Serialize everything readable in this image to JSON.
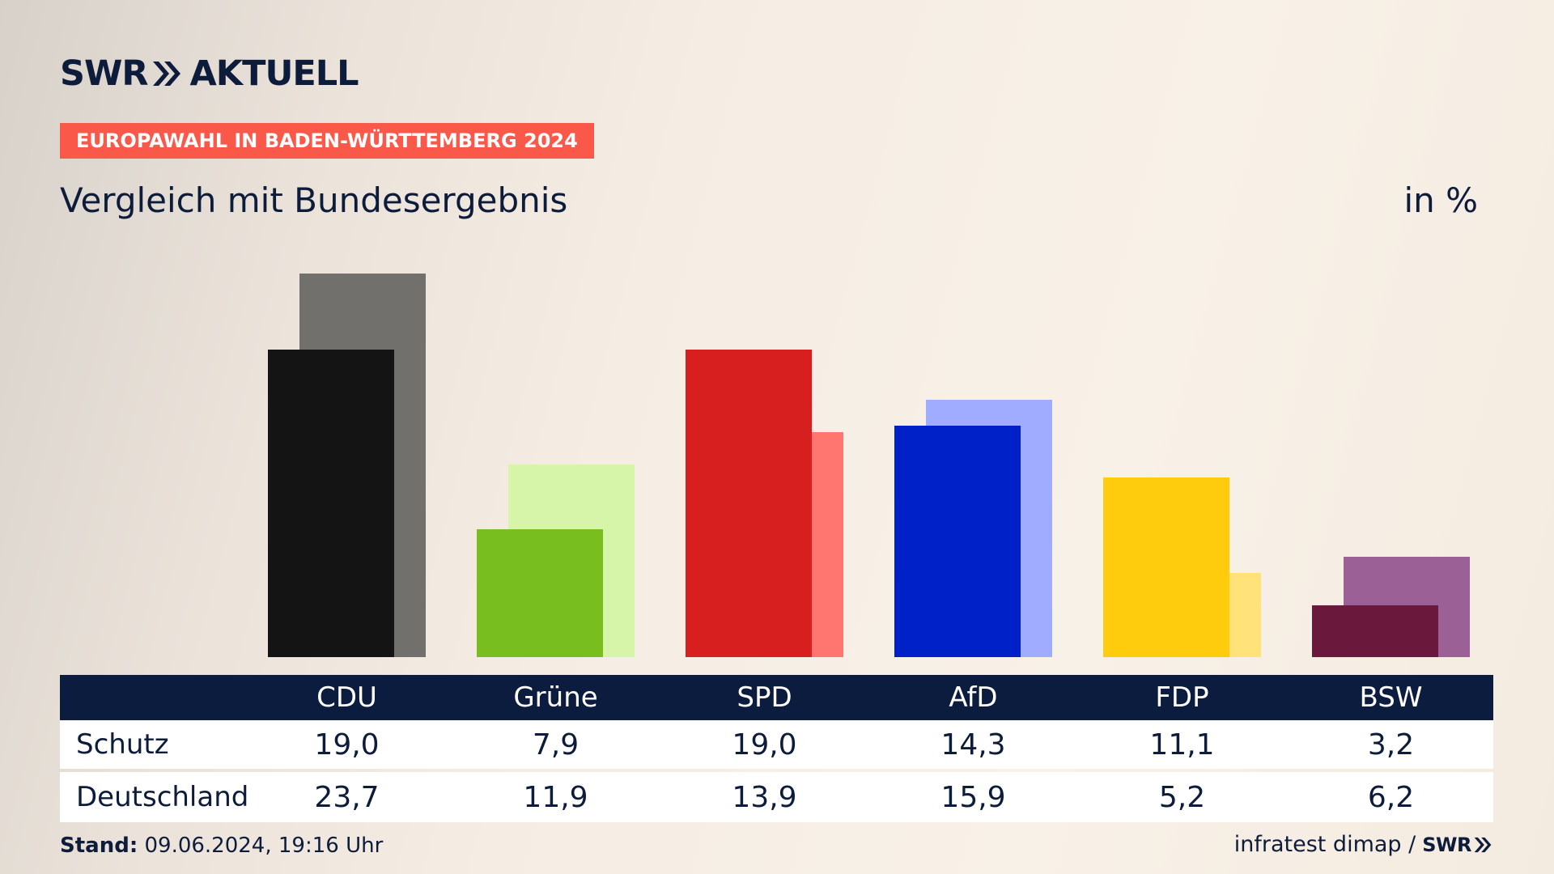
{
  "brand": {
    "swr": "SWR",
    "aktuell": "AKTUELL",
    "chevron_icon": "double-chevron-right-icon"
  },
  "tag": "EUROPAWAHL IN BADEN-WÜRTTEMBERG 2024",
  "subtitle": "Vergleich mit Bundesergebnis",
  "unit": "in %",
  "table": {
    "row_labels": [
      "Schutz",
      "Deutschland"
    ]
  },
  "footer": {
    "stand_label": "Stand:",
    "stand_value": "09.06.2024, 19:16 Uhr",
    "source": "infratest dimap /",
    "source_logo": "SWR"
  },
  "colors": {
    "text": "#0e1c3b",
    "tag_bg": "#fa5848",
    "table_header_bg": "#0c1c3e"
  },
  "chart_data": {
    "type": "bar",
    "categories": [
      "CDU",
      "Grüne",
      "SPD",
      "AfD",
      "FDP",
      "BSW"
    ],
    "series": [
      {
        "name": "Schutz",
        "values": [
          19.0,
          7.9,
          19.0,
          14.3,
          11.1,
          3.2
        ],
        "colors": [
          "#141414",
          "#78be1e",
          "#d71f1f",
          "#0021c8",
          "#ffcc0d",
          "#6a193c"
        ]
      },
      {
        "name": "Deutschland",
        "values": [
          23.7,
          11.9,
          13.9,
          15.9,
          5.2,
          6.2
        ],
        "colors": [
          "#72706d",
          "#d6f5a9",
          "#ff7670",
          "#a0acff",
          "#ffe37a",
          "#9b6196"
        ]
      }
    ],
    "value_labels": {
      "Schutz": [
        "19,0",
        "7,9",
        "19,0",
        "14,3",
        "11,1",
        "3,2"
      ],
      "Deutschland": [
        "23,7",
        "11,9",
        "13,9",
        "15,9",
        "5,2",
        "6,2"
      ]
    },
    "ylim": [
      0,
      25
    ],
    "grid": false,
    "legend": "none"
  }
}
